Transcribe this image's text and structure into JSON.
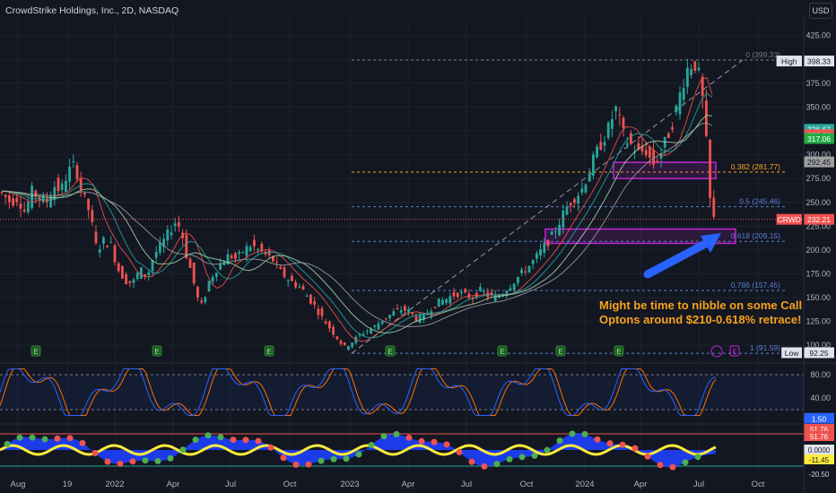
{
  "header": {
    "title": "CrowdStrike Holdings, Inc., 2D, NASDAQ",
    "currency": "USD"
  },
  "colors": {
    "up": "#26a69a",
    "down": "#ef5350",
    "bg": "#131722",
    "grid": "#1e222d",
    "axis_text": "#b2b5be",
    "fib": "#5b7fd1",
    "fib_orange": "#f7a21b",
    "annotation": "#f7a21b",
    "arrow": "#2962ff",
    "rect": "#c026d3"
  },
  "price_axis": {
    "ticks": [
      100,
      125,
      150,
      175,
      200,
      225,
      250,
      275,
      300,
      325,
      350,
      375,
      400,
      425
    ],
    "ylim": [
      88,
      436
    ]
  },
  "time_axis": {
    "labels": [
      "Aug",
      "19",
      "2022",
      "Apr",
      "Jul",
      "Oct",
      "2023",
      "Apr",
      "Jul",
      "Oct",
      "2024",
      "Apr",
      "Jul",
      "Oct"
    ]
  },
  "price_tags": [
    {
      "text": "398.33",
      "color": "#e0e3eb",
      "fg": "#131722",
      "price": 398.33,
      "label": "High"
    },
    {
      "text": "326.67",
      "color": "#26a69a",
      "fg": "#ffffff",
      "price": 326.67
    },
    {
      "text": "320.93",
      "color": "#ef5350",
      "fg": "#ffffff",
      "price": 320.93
    },
    {
      "text": "317.06",
      "color": "#22ab44",
      "fg": "#ffffff",
      "price": 317.06
    },
    {
      "text": "292.45",
      "color": "#9e9e9e",
      "fg": "#131722",
      "price": 292.45
    },
    {
      "text": "232.21",
      "color": "#ef5350",
      "fg": "#ffffff",
      "price": 232.21,
      "label": "CRWD"
    },
    {
      "text": "92.25",
      "color": "#e0e3eb",
      "fg": "#131722",
      "price": 92.25,
      "label": "Low"
    }
  ],
  "fib_levels": [
    {
      "label": "0 (399.33)",
      "price": 399.33,
      "color": "#787b86"
    },
    {
      "label": "0.382 (281.77)",
      "price": 281.77,
      "color": "#f7a21b"
    },
    {
      "label": "0.5 (245.46)",
      "price": 245.46,
      "color": "#5b7fd1"
    },
    {
      "label": "0.618 (209.15)",
      "price": 209.15,
      "color": "#5b7fd1"
    },
    {
      "label": "0.786 (157.45)",
      "price": 157.45,
      "color": "#5b7fd1"
    },
    {
      "label": "1 (91.59)",
      "price": 91.59,
      "color": "#5b7fd1"
    }
  ],
  "annotation": {
    "line1": "Might be time to nibble on some Call",
    "line2": "Optons around $210-0.618% retrace!"
  },
  "earnings_marker": "E",
  "stoch": {
    "ticks": [
      "80.00",
      "40.00"
    ],
    "value_tag": "1.50",
    "ylim": [
      0,
      100
    ]
  },
  "momentum": {
    "tags": [
      "51.76",
      "51.76",
      "0.0000",
      "-11.45",
      "-20.50"
    ]
  },
  "chart_data": {
    "type": "candlestick",
    "title": "CrowdStrike Holdings, Inc., 2D, NASDAQ",
    "ylim": [
      88,
      436
    ],
    "close_path": [
      [
        0,
        262
      ],
      [
        8,
        258
      ],
      [
        16,
        250
      ],
      [
        24,
        255
      ],
      [
        32,
        240
      ],
      [
        40,
        262
      ],
      [
        48,
        255
      ],
      [
        56,
        250
      ],
      [
        64,
        268
      ],
      [
        72,
        262
      ],
      [
        80,
        282
      ],
      [
        88,
        290
      ],
      [
        96,
        258
      ],
      [
        104,
        240
      ],
      [
        112,
        200
      ],
      [
        120,
        210
      ],
      [
        128,
        205
      ],
      [
        136,
        180
      ],
      [
        144,
        168
      ],
      [
        152,
        165
      ],
      [
        160,
        180
      ],
      [
        168,
        172
      ],
      [
        176,
        195
      ],
      [
        184,
        205
      ],
      [
        192,
        218
      ],
      [
        200,
        230
      ],
      [
        206,
        222
      ],
      [
        212,
        195
      ],
      [
        218,
        175
      ],
      [
        224,
        150
      ],
      [
        230,
        140
      ],
      [
        236,
        165
      ],
      [
        244,
        178
      ],
      [
        252,
        188
      ],
      [
        260,
        195
      ],
      [
        268,
        190
      ],
      [
        276,
        200
      ],
      [
        284,
        205
      ],
      [
        292,
        200
      ],
      [
        300,
        195
      ],
      [
        308,
        190
      ],
      [
        316,
        178
      ],
      [
        324,
        170
      ],
      [
        332,
        165
      ],
      [
        340,
        160
      ],
      [
        348,
        150
      ],
      [
        356,
        140
      ],
      [
        364,
        128
      ],
      [
        372,
        118
      ],
      [
        380,
        108
      ],
      [
        388,
        98
      ],
      [
        396,
        103
      ],
      [
        404,
        110
      ],
      [
        412,
        115
      ],
      [
        420,
        118
      ],
      [
        428,
        125
      ],
      [
        436,
        130
      ],
      [
        444,
        135
      ],
      [
        452,
        138
      ],
      [
        460,
        136
      ],
      [
        468,
        128
      ],
      [
        476,
        130
      ],
      [
        484,
        138
      ],
      [
        492,
        145
      ],
      [
        500,
        148
      ],
      [
        508,
        152
      ],
      [
        516,
        155
      ],
      [
        524,
        152
      ],
      [
        532,
        150
      ],
      [
        540,
        158
      ],
      [
        548,
        152
      ],
      [
        556,
        150
      ],
      [
        564,
        155
      ],
      [
        572,
        162
      ],
      [
        580,
        170
      ],
      [
        588,
        178
      ],
      [
        596,
        185
      ],
      [
        604,
        195
      ],
      [
        612,
        205
      ],
      [
        620,
        215
      ],
      [
        628,
        230
      ],
      [
        636,
        245
      ],
      [
        644,
        255
      ],
      [
        652,
        262
      ],
      [
        660,
        280
      ],
      [
        668,
        300
      ],
      [
        676,
        315
      ],
      [
        684,
        330
      ],
      [
        690,
        350
      ],
      [
        694,
        338
      ],
      [
        700,
        318
      ],
      [
        708,
        310
      ],
      [
        716,
        302
      ],
      [
        724,
        305
      ],
      [
        732,
        290
      ],
      [
        740,
        300
      ],
      [
        748,
        318
      ],
      [
        756,
        340
      ],
      [
        764,
        370
      ],
      [
        770,
        390
      ],
      [
        778,
        398
      ],
      [
        784,
        380
      ],
      [
        790,
        340
      ],
      [
        794,
        268
      ],
      [
        798,
        232
      ]
    ],
    "high": 398.33,
    "low": 92.25,
    "last": 232.21,
    "moving_averages": [
      {
        "color": "#ef5350",
        "lag": 6
      },
      {
        "color": "#26a69a",
        "lag": 10
      },
      {
        "color": "#a5d6a7",
        "lag": 16
      },
      {
        "color": "#9e9e9e",
        "lag": 24
      }
    ]
  }
}
